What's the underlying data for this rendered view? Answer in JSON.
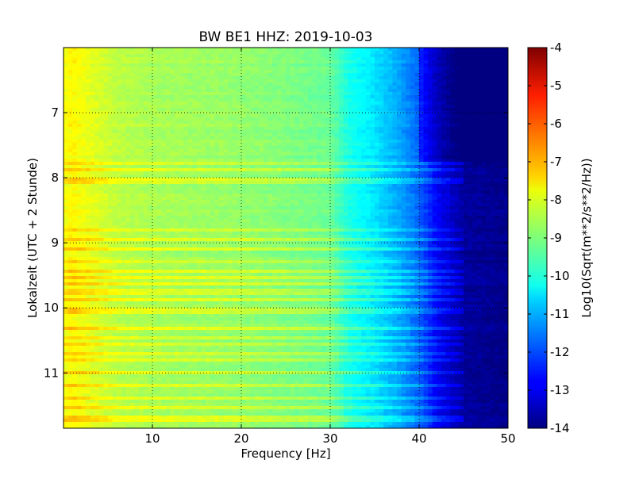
{
  "chart_data": {
    "type": "heatmap",
    "title": "BW BE1 HHZ: 2019-10-03",
    "xlabel": "Frequency [Hz]",
    "ylabel": "Lokalzeit (UTC + 2 Stunde)",
    "xlim": [
      0,
      50
    ],
    "ylim": [
      6.0,
      11.85
    ],
    "y_inverted": true,
    "x_ticks": [
      "10",
      "20",
      "30",
      "40",
      "50"
    ],
    "x_tick_values": [
      10,
      20,
      30,
      40,
      50
    ],
    "y_ticks": [
      "7",
      "8",
      "9",
      "10",
      "11"
    ],
    "y_tick_values": [
      7,
      8,
      9,
      10,
      11
    ],
    "grid": true,
    "colormap": "jet",
    "colorbar": {
      "label": "Log10(Sqrt(m**2/s**2/Hz))",
      "range": [
        -14,
        -4
      ],
      "ticks": [
        "-4",
        "-5",
        "-6",
        "-7",
        "-8",
        "-9",
        "-10",
        "-11",
        "-12",
        "-13",
        "-14"
      ],
      "tick_values": [
        -4,
        -5,
        -6,
        -7,
        -8,
        -9,
        -10,
        -11,
        -12,
        -13,
        -14
      ]
    },
    "frequency_profile": {
      "frequencies": [
        0,
        1,
        3,
        6,
        10,
        15,
        20,
        25,
        30,
        32,
        35,
        38,
        40,
        42,
        45,
        50
      ],
      "values": [
        -7.9,
        -7.7,
        -8.0,
        -8.4,
        -8.6,
        -8.7,
        -8.8,
        -9.0,
        -9.2,
        -10.0,
        -10.5,
        -11.2,
        -11.8,
        -12.8,
        -13.7,
        -13.9
      ]
    },
    "bright_bands_local_hours": [
      7.78,
      7.87,
      8.05,
      8.82,
      8.95,
      9.1,
      9.3,
      9.45,
      9.55,
      9.62,
      9.75,
      9.88,
      10.05,
      10.3,
      10.45,
      10.55,
      10.72,
      10.82,
      10.98,
      11.18,
      11.4,
      11.55,
      11.7
    ],
    "quiet_interval_local_hours": [
      6.0,
      7.75
    ]
  }
}
